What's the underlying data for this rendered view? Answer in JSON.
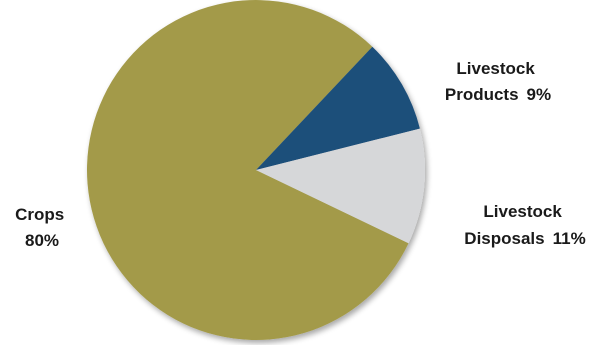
{
  "chart_data": {
    "type": "pie",
    "slices": [
      {
        "label_line1": "Crops",
        "label_line2": "80%",
        "value": 80,
        "color": "#a39a4a"
      },
      {
        "label_line1": "Livestock",
        "label_line2": "Products",
        "label_pct": "9%",
        "value": 9,
        "color": "#1f4f7a"
      },
      {
        "label_line1": "Livestock",
        "label_line2": "Disposals",
        "label_pct": "11%",
        "value": 11,
        "color": "#d6d7d9"
      }
    ],
    "title": "",
    "legend": "none"
  }
}
